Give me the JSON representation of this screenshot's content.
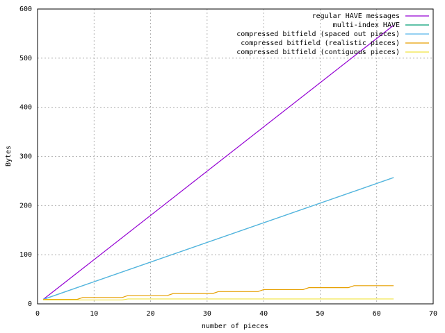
{
  "chart_data": {
    "type": "line",
    "xlabel": "number of pieces",
    "ylabel": "Bytes",
    "xlim": [
      0,
      70
    ],
    "xticks": [
      0,
      10,
      20,
      30,
      40,
      50,
      60,
      70
    ],
    "ylim": [
      0,
      600
    ],
    "yticks": [
      0,
      100,
      200,
      300,
      400,
      500,
      600
    ],
    "grid": true,
    "legend": "top-right",
    "series": [
      {
        "name": "regular HAVE messages",
        "color": "#9400d3",
        "x": [
          1,
          63
        ],
        "values": [
          9,
          567
        ]
      },
      {
        "name": "multi-index HAVE",
        "color": "#009e73",
        "x": [
          1,
          63
        ],
        "values": [
          9,
          257
        ]
      },
      {
        "name": "compressed bitfield (spaced out pieces)",
        "color": "#56b4e9",
        "x": [
          1,
          63
        ],
        "values": [
          9,
          257
        ]
      },
      {
        "name": "compressed bitfield (realistic pieces)",
        "color": "#e69f00",
        "x": [
          1,
          7,
          8,
          15,
          16,
          23,
          24,
          31,
          32,
          39,
          40,
          47,
          48,
          55,
          56,
          63
        ],
        "values": [
          9,
          9,
          13,
          13,
          17,
          17,
          21,
          21,
          25,
          25,
          29,
          29,
          33,
          33,
          37,
          37
        ]
      },
      {
        "name": "compressed bitfield (contiguous pieces)",
        "color": "#f0e442",
        "x": [
          1,
          15,
          16,
          63
        ],
        "values": [
          8,
          8,
          10,
          10
        ]
      }
    ]
  }
}
